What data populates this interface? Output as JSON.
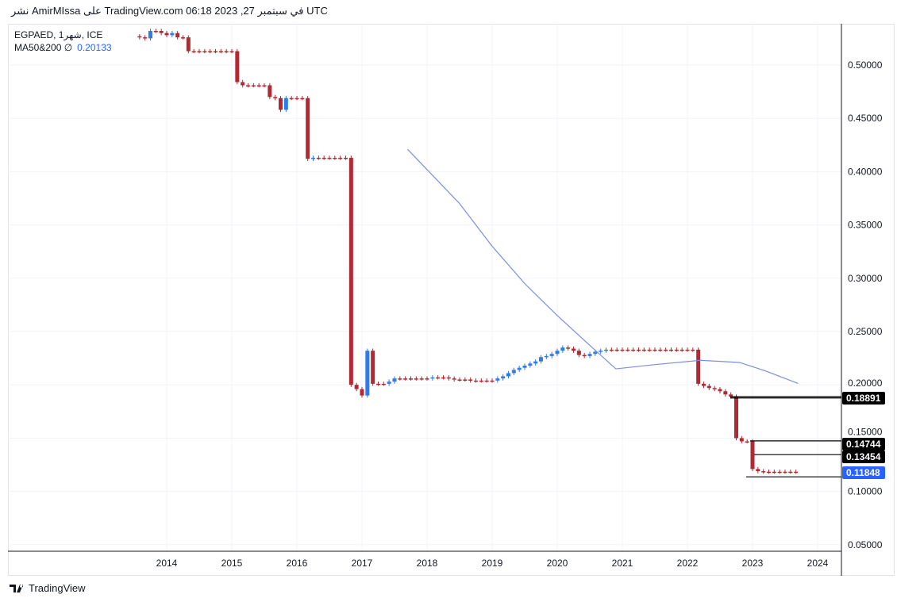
{
  "caption": "نشر AmirMIssa على TradingView.com 06:18 2023 ,27 في سبتمبر UTC",
  "legend": {
    "symbol": "EGPAED, 1شهر, ICE",
    "indicator": "MA50&200",
    "indicator_symbol": "∅",
    "indicator_value": "0.20133"
  },
  "brand": "TradingView",
  "colors": {
    "up": "#2f7be8",
    "down": "#b22833",
    "ma": "#7b8ee0",
    "last": "#2962ff"
  },
  "chart_data": {
    "type": "candlestick",
    "symbol": "EGPAED",
    "interval": "1M",
    "start": "2013-08",
    "closes": [
      0.526,
      0.525,
      0.532,
      0.532,
      0.53,
      0.528,
      0.53,
      0.526,
      0.526,
      0.513,
      0.513,
      0.513,
      0.513,
      0.513,
      0.513,
      0.513,
      0.513,
      0.513,
      0.484,
      0.481,
      0.481,
      0.481,
      0.481,
      0.481,
      0.47,
      0.469,
      0.458,
      0.469,
      0.469,
      0.469,
      0.469,
      0.412,
      0.413,
      0.413,
      0.413,
      0.413,
      0.413,
      0.413,
      0.413,
      0.2,
      0.196,
      0.19,
      0.232,
      0.201,
      0.201,
      0.201,
      0.203,
      0.206,
      0.206,
      0.206,
      0.206,
      0.206,
      0.206,
      0.206,
      0.207,
      0.207,
      0.207,
      0.206,
      0.205,
      0.205,
      0.205,
      0.204,
      0.204,
      0.204,
      0.204,
      0.204,
      0.206,
      0.208,
      0.211,
      0.214,
      0.216,
      0.218,
      0.22,
      0.222,
      0.226,
      0.227,
      0.229,
      0.232,
      0.235,
      0.234,
      0.232,
      0.228,
      0.227,
      0.229,
      0.231,
      0.232,
      0.233,
      0.233,
      0.233,
      0.233,
      0.233,
      0.233,
      0.233,
      0.233,
      0.233,
      0.233,
      0.233,
      0.233,
      0.233,
      0.233,
      0.233,
      0.233,
      0.233,
      0.201,
      0.199,
      0.197,
      0.196,
      0.194,
      0.191,
      0.189,
      0.15,
      0.147,
      0.147,
      0.121,
      0.119,
      0.1185,
      0.1185,
      0.1185,
      0.1185,
      0.1185,
      0.1185,
      0.11848
    ],
    "ma": [
      [
        2017.7,
        0.421
      ],
      [
        2018.5,
        0.37
      ],
      [
        2019.0,
        0.33
      ],
      [
        2019.5,
        0.295
      ],
      [
        2020.0,
        0.265
      ],
      [
        2020.5,
        0.237
      ],
      [
        2020.9,
        0.215
      ],
      [
        2021.5,
        0.219
      ],
      [
        2022.2,
        0.223
      ],
      [
        2022.8,
        0.221
      ],
      [
        2023.2,
        0.213
      ],
      [
        2023.7,
        0.2013
      ]
    ],
    "x_ticks": [
      "2014",
      "2015",
      "2016",
      "2017",
      "2018",
      "2019",
      "2020",
      "2021",
      "2022",
      "2023",
      "2024"
    ],
    "y_ticks": [
      "0.05000",
      "0.10000",
      "0.15000",
      "0.20000",
      "0.25000",
      "0.30000",
      "0.35000",
      "0.40000",
      "0.45000",
      "0.50000"
    ],
    "hlines": [
      {
        "value": 0.18891,
        "label": "0.18891"
      },
      {
        "value": 0.1877
      },
      {
        "value": 0.14744,
        "label": "0.14744"
      },
      {
        "value": 0.13454,
        "label": "0.13454"
      },
      {
        "value": 0.1137
      }
    ],
    "last_price": "0.11848"
  }
}
